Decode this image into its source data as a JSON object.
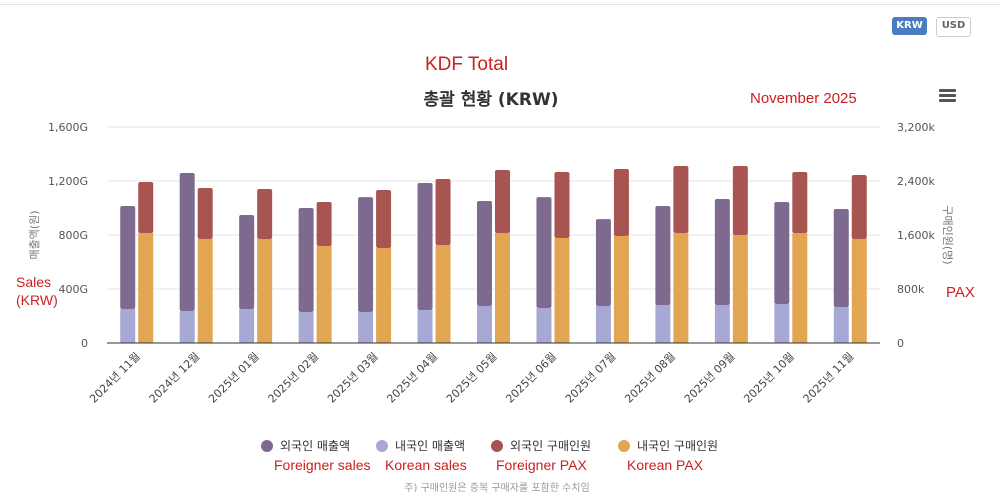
{
  "currency_buttons": {
    "krw": "KRW",
    "usd": "USD",
    "active": "KRW"
  },
  "annotations": {
    "kdf_total": "KDF Total",
    "period": "November 2025",
    "sales_label": "Sales (KRW)",
    "pax_label": "PAX",
    "legend_translations": [
      "Foreigner sales",
      "Korean sales",
      "Foreigner PAX",
      "Korean PAX"
    ]
  },
  "footnote": "주) 구매인원은 중복 구매자를 포함한 수치임",
  "chart_data": {
    "type": "bar",
    "title": "총괄 현황 (KRW)",
    "categories": [
      "2024년 11월",
      "2024년 12월",
      "2025년 01월",
      "2025년 02월",
      "2025년 03월",
      "2025년 04월",
      "2025년 05월",
      "2025년 06월",
      "2025년 07월",
      "2025년 08월",
      "2025년 09월",
      "2025년 10월",
      "2025년 11월"
    ],
    "ylabel": "매출액(원)",
    "y2label": "구매인원(명)",
    "ylim": [
      0,
      1600
    ],
    "y2lim": [
      0,
      3200
    ],
    "yticks": [
      "0",
      "400G",
      "800G",
      "1,200G",
      "1,600G"
    ],
    "y2ticks": [
      "0",
      "800k",
      "1,600k",
      "2,400k",
      "3,200k"
    ],
    "grid": true,
    "legend_position": "bottom",
    "units": {
      "sales": "G KRW",
      "pax": "k persons"
    },
    "series": [
      {
        "name": "외국인 매출액",
        "stack": "sales",
        "axis": "left",
        "color": "#7f6a8f",
        "values": [
          763,
          1022,
          696,
          770,
          851,
          941,
          778,
          822,
          644,
          734,
          786,
          755,
          726
        ]
      },
      {
        "name": "내국인 매출액",
        "stack": "sales",
        "axis": "left",
        "color": "#a7a8d4",
        "values": [
          252,
          237,
          252,
          230,
          230,
          244,
          274,
          259,
          274,
          281,
          281,
          289,
          267
        ]
      },
      {
        "name": "외국인 구매인원",
        "stack": "pax",
        "axis": "right",
        "color": "#a85552",
        "values": [
          755,
          755,
          740,
          652,
          860,
          978,
          933,
          977,
          993,
          992,
          1022,
          903,
          948
        ]
      },
      {
        "name": "내국인 구매인원",
        "stack": "pax",
        "axis": "right",
        "color": "#e2a552",
        "values": [
          1630,
          1541,
          1541,
          1437,
          1407,
          1452,
          1630,
          1556,
          1585,
          1630,
          1600,
          1630,
          1541
        ]
      }
    ]
  }
}
